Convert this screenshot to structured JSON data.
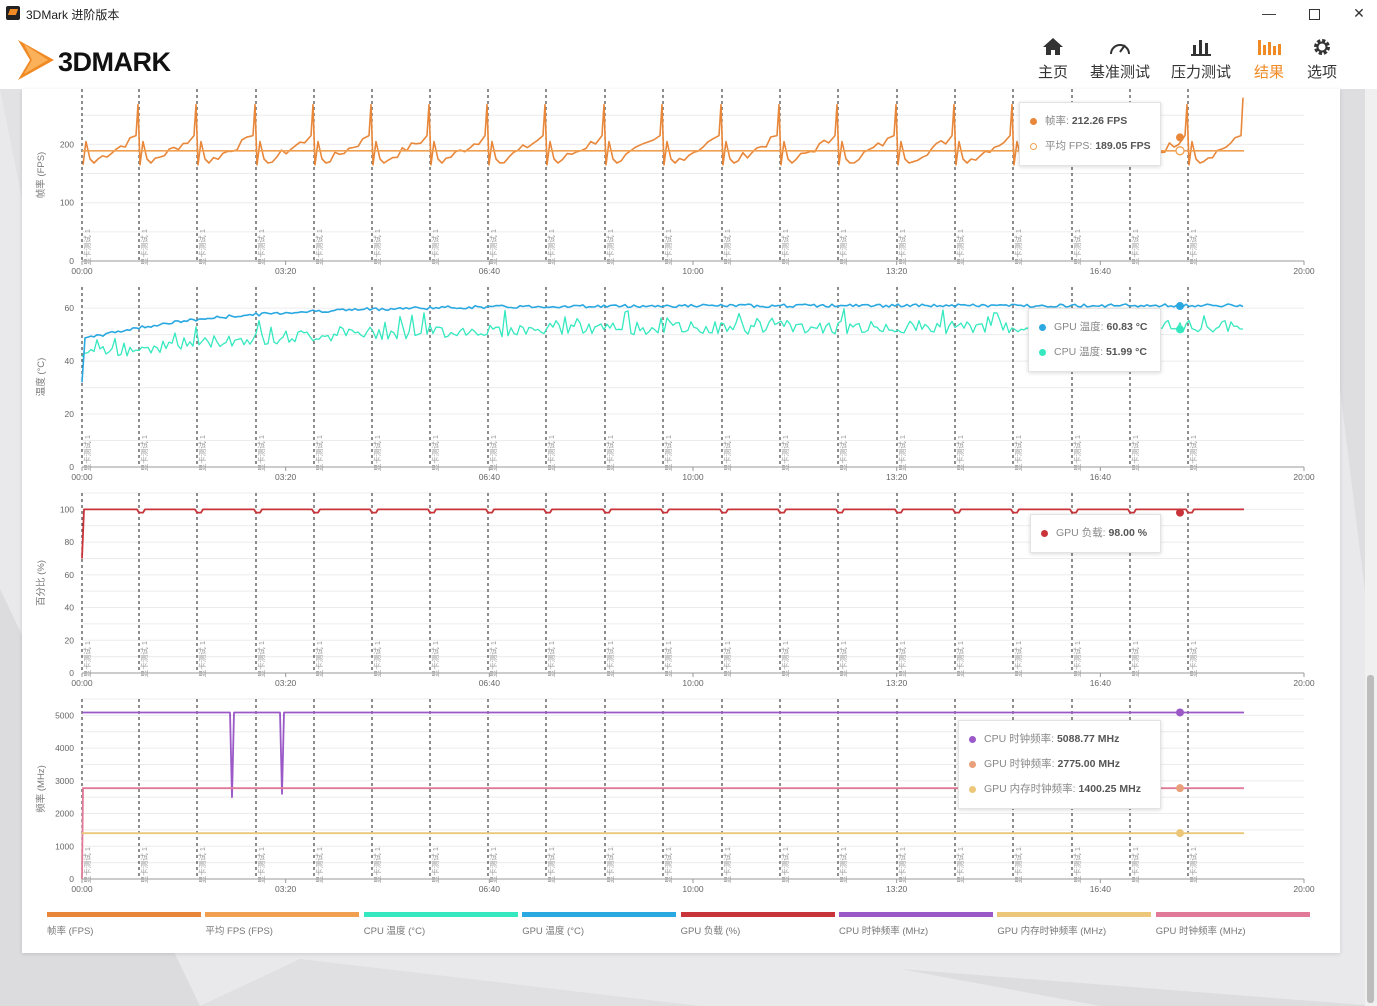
{
  "window": {
    "title": "3DMark 进阶版本",
    "min_label": "—",
    "close_label": "✕"
  },
  "logo": {
    "text": "3DMARK"
  },
  "nav": [
    {
      "label": "主页",
      "icon": "home-icon"
    },
    {
      "label": "基准测试",
      "icon": "gauge-icon"
    },
    {
      "label": "压力测试",
      "icon": "bar-chart-icon"
    },
    {
      "label": "结果",
      "icon": "results-icon",
      "active": true
    },
    {
      "label": "选项",
      "icon": "gear-icon"
    }
  ],
  "colors": {
    "accent": "#f08a24",
    "fps": "#e8873a",
    "avg_fps": "#f0a050",
    "cpu_temp": "#35e8bf",
    "gpu_temp": "#2aa8e0",
    "gpu_load": "#c8343a",
    "cpu_clock": "#9b59c8",
    "gpu_mem_clock": "#ecc77a",
    "gpu_clock": "#e07a98"
  },
  "marker_label": "显卡测试 1",
  "chart_data": [
    {
      "type": "line",
      "ylabel": "帧率 (FPS)",
      "y_ticks": [
        "0",
        "100",
        "200"
      ],
      "ylim": [
        0,
        295
      ],
      "x_ticks": [
        "00:00",
        "03:20",
        "06:40",
        "10:00",
        "13:20",
        "16:40",
        "20:00"
      ],
      "xlim_seconds": [
        0,
        1200
      ],
      "series": [
        {
          "name": "帧率",
          "unit": "FPS",
          "approx": "sawtooth 165–270 repeating every ~57s, rising to ~280 at end"
        },
        {
          "name": "平均 FPS",
          "unit": "FPS",
          "value": 189.05
        }
      ],
      "tooltip": [
        {
          "label": "帧率",
          "value": "212.26 FPS",
          "color": "#e8873a",
          "hollow": false
        },
        {
          "label": "平均 FPS",
          "value": "189.05 FPS",
          "color": "#f0a050",
          "hollow": true
        }
      ]
    },
    {
      "type": "line",
      "ylabel": "温度 (°C)",
      "y_ticks": [
        "0",
        "20",
        "40",
        "60"
      ],
      "ylim": [
        0,
        68
      ],
      "x_ticks": [
        "00:00",
        "03:20",
        "06:40",
        "10:00",
        "13:20",
        "16:40",
        "20:00"
      ],
      "series": [
        {
          "name": "GPU 温度",
          "unit": "°C",
          "start": 48,
          "end": 61
        },
        {
          "name": "CPU 温度",
          "unit": "°C",
          "start": 42,
          "end": 53
        }
      ],
      "tooltip": [
        {
          "label": "GPU 温度",
          "value": "60.83 °C",
          "color": "#2aa8e0",
          "hollow": false
        },
        {
          "label": "CPU 温度",
          "value": "51.99 °C",
          "color": "#35e8bf",
          "hollow": false
        }
      ]
    },
    {
      "type": "line",
      "ylabel": "百分比 (%)",
      "y_ticks": [
        "0",
        "20",
        "40",
        "60",
        "80",
        "100"
      ],
      "ylim": [
        0,
        110
      ],
      "x_ticks": [
        "00:00",
        "03:20",
        "06:40",
        "10:00",
        "13:20",
        "16:40",
        "20:00"
      ],
      "series": [
        {
          "name": "GPU 负载",
          "unit": "%",
          "typical": 100,
          "dips_to": 98
        }
      ],
      "tooltip": [
        {
          "label": "GPU 负载",
          "value": "98.00 %",
          "color": "#c8343a",
          "hollow": false
        }
      ]
    },
    {
      "type": "line",
      "ylabel": "频率 (MHz)",
      "y_ticks": [
        "0",
        "1000",
        "2000",
        "3000",
        "4000",
        "5000"
      ],
      "ylim": [
        0,
        5500
      ],
      "x_ticks": [
        "00:00",
        "03:20",
        "06:40",
        "10:00",
        "13:20",
        "16:40",
        "20:00"
      ],
      "series": [
        {
          "name": "CPU 时钟频率",
          "unit": "MHz",
          "typical": 5088,
          "dips_to": 2500
        },
        {
          "name": "GPU 时钟频率",
          "unit": "MHz",
          "typical": 2775
        },
        {
          "name": "GPU 内存时钟频率",
          "unit": "MHz",
          "typical": 1400
        }
      ],
      "tooltip": [
        {
          "label": "CPU 时钟频率",
          "value": "5088.77 MHz",
          "color": "#9b59c8",
          "hollow": false
        },
        {
          "label": "GPU 时钟频率",
          "value": "2775.00 MHz",
          "color": "#e8a07a",
          "hollow": false
        },
        {
          "label": "GPU 内存时钟频率",
          "value": "1400.25 MHz",
          "color": "#ecc77a",
          "hollow": false
        }
      ]
    }
  ],
  "legend": [
    {
      "label": "帧率 (FPS)",
      "color": "#e8873a"
    },
    {
      "label": "平均 FPS (FPS)",
      "color": "#f0a050"
    },
    {
      "label": "CPU 温度 (°C)",
      "color": "#35e8bf"
    },
    {
      "label": "GPU 温度 (°C)",
      "color": "#2aa8e0"
    },
    {
      "label": "GPU 负载 (%)",
      "color": "#c8343a"
    },
    {
      "label": "CPU 时钟频率 (MHz)",
      "color": "#9b59c8"
    },
    {
      "label": "GPU 内存时钟频率 (MHz)",
      "color": "#ecc77a"
    },
    {
      "label": "GPU 时钟频率 (MHz)",
      "color": "#e07a98"
    }
  ]
}
